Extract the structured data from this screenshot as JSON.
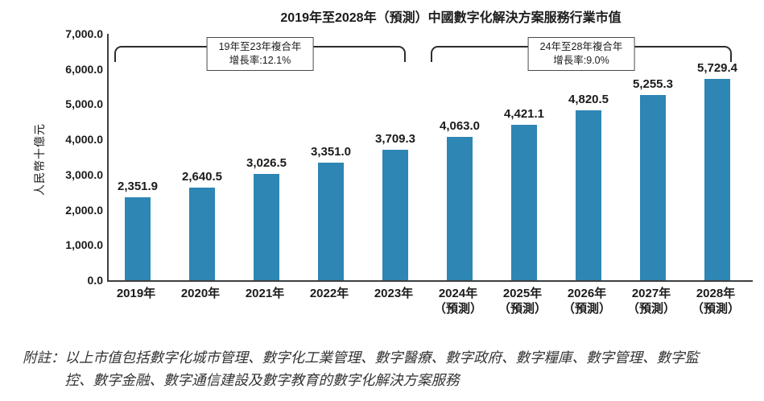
{
  "title": "2019年至2028年（預測）中國數字化解決方案服務行業市值",
  "chart_data": {
    "type": "bar",
    "title": "2019年至2028年（預測）中國數字化解決方案服務行業市值",
    "xlabel": "",
    "ylabel": "人民幣十億元",
    "ylim": [
      0,
      7000
    ],
    "grid": false,
    "legend": "none",
    "bar_color": "#2D86B4",
    "categories": [
      "2019年",
      "2020年",
      "2021年",
      "2022年",
      "2023年",
      "2024年",
      "2025年",
      "2026年",
      "2027年",
      "2028年"
    ],
    "category_sublabels": [
      "",
      "",
      "",
      "",
      "",
      "（預測）",
      "（預測）",
      "（預測）",
      "（預測）",
      "（預測）"
    ],
    "values": [
      2351.9,
      2640.5,
      3026.5,
      3351.0,
      3709.3,
      4063.0,
      4421.1,
      4820.5,
      5255.3,
      5729.4
    ],
    "value_labels": [
      "2,351.9",
      "2,640.5",
      "3,026.5",
      "3,351.0",
      "3,709.3",
      "4,063.0",
      "4,421.1",
      "4,820.5",
      "5,255.3",
      "5,729.4"
    ],
    "y_ticks": [
      "7,000.0",
      "6,000.0",
      "5,000.0",
      "4,000.0",
      "3,000.0",
      "2,000.0",
      "1,000.0",
      "0.0"
    ],
    "annotations": [
      {
        "line1": "19年至23年複合年",
        "line2": "增長率:12.1%",
        "span": "2019年至2023年"
      },
      {
        "line1": "24年至28年複合年",
        "line2": "增長率:9.0%",
        "span": "2024年至2028年"
      }
    ]
  },
  "note": {
    "prefix": "附註：",
    "lines": [
      "以上市值包括數字化城市管理、數字化工業管理、數字醫療、數字政府、數字糧庫、數字管理、數字監",
      "控、數字金融、數字通信建設及數字教育的數字化解決方案服務"
    ]
  }
}
